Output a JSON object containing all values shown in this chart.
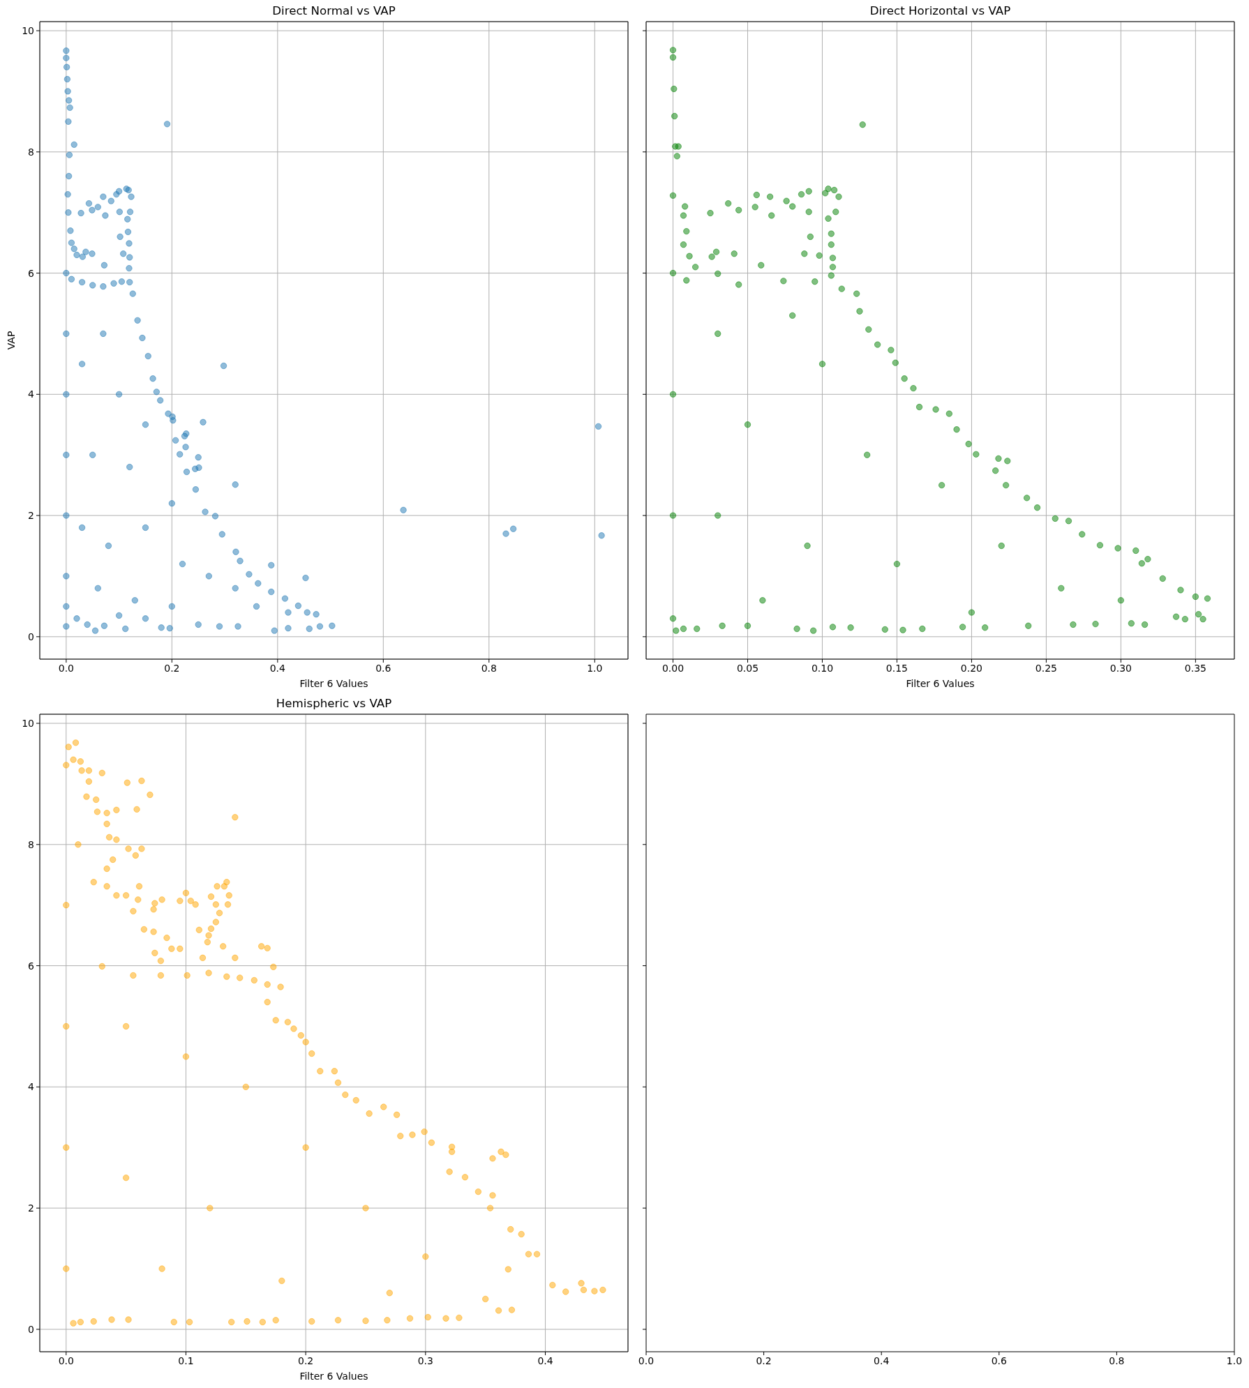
{
  "chart_data": [
    {
      "type": "scatter",
      "title": "Direct Normal vs VAP",
      "xlabel": "Filter 6 Values",
      "ylabel": "VAP",
      "color": "#1f77b4",
      "marker": "circle",
      "grid": true,
      "xlim": [
        -0.05,
        1.063
      ],
      "xticks": [
        {
          "value": 0,
          "label": "0.0"
        },
        0.2,
        0.4,
        0.6,
        0.8,
        {
          "value": 1,
          "label": "1.0"
        }
      ],
      "ylim": [
        -0.37,
        10.15
      ],
      "yticks": [
        0,
        2,
        4,
        6,
        8,
        10
      ],
      "x": [
        0,
        0,
        0.001,
        0.002,
        0.003,
        0.005,
        0.007,
        0.004,
        0.015,
        0.006,
        0.005,
        0.003,
        0.004,
        0.008,
        0.01,
        0.015,
        0.02,
        0,
        0,
        0,
        0,
        0,
        0,
        0,
        0,
        0.028,
        0.043,
        0.049,
        0.06,
        0.07,
        0.074,
        0.085,
        0.095,
        0.1,
        0.101,
        0.114,
        0.118,
        0.123,
        0.121,
        0.116,
        0.117,
        0.119,
        0.12,
        0.119,
        0.102,
        0.108,
        0.031,
        0.037,
        0.049,
        0.072,
        0.01,
        0.03,
        0.05,
        0.07,
        0.09,
        0.105,
        0.12,
        0.126,
        0.135,
        0.144,
        0.155,
        0.164,
        0.171,
        0.178,
        0.193,
        0.202,
        0.207,
        0.215,
        0.228,
        0.245,
        0.263,
        0.282,
        0.295,
        0.321,
        0.329,
        0.346,
        0.363,
        0.388,
        0.414,
        0.439,
        0.456,
        0.473,
        0.503,
        0.191,
        0.298,
        0.201,
        0.259,
        0.227,
        0.224,
        0.226,
        0.25,
        0.251,
        0.244,
        0.32,
        0.388,
        0.453,
        0.638,
        0.832,
        0.846,
        1.007,
        1.013,
        0.055,
        0.112,
        0.04,
        0.072,
        0.18,
        0.196,
        0.25,
        0.29,
        0.325,
        0.394,
        0.42,
        0.46,
        0.48,
        0.02,
        0.1,
        0.15,
        0.03,
        0.07,
        0.1,
        0.05,
        0.12,
        0.15,
        0.03,
        0.08,
        0.15,
        0.2,
        0.22,
        0.27,
        0.32,
        0.06,
        0.13,
        0.2,
        0.36,
        0.42
      ],
      "values": [
        9.67,
        9.55,
        9.4,
        9.2,
        9.0,
        8.85,
        8.73,
        8.5,
        8.12,
        7.95,
        7.6,
        7.3,
        7.0,
        6.7,
        6.5,
        6.4,
        6.3,
        6.0,
        5.0,
        4.0,
        3.0,
        2.0,
        1.0,
        0.5,
        0.17,
        6.99,
        7.15,
        7.04,
        7.09,
        7.26,
        6.95,
        7.19,
        7.3,
        7.35,
        7.01,
        7.39,
        7.37,
        7.26,
        7.01,
        6.89,
        6.68,
        6.49,
        6.26,
        6.08,
        6.6,
        6.32,
        6.27,
        6.35,
        6.32,
        6.13,
        5.9,
        5.85,
        5.8,
        5.78,
        5.83,
        5.86,
        5.85,
        5.66,
        5.22,
        4.93,
        4.63,
        4.26,
        4.04,
        3.9,
        3.68,
        3.57,
        3.24,
        3.01,
        2.72,
        2.43,
        2.06,
        1.99,
        1.69,
        1.4,
        1.25,
        1.03,
        0.88,
        0.74,
        0.63,
        0.51,
        0.4,
        0.37,
        0.18,
        8.46,
        4.47,
        3.63,
        3.54,
        3.35,
        3.31,
        3.13,
        2.96,
        2.79,
        2.77,
        2.51,
        1.18,
        0.97,
        2.09,
        1.7,
        1.78,
        3.47,
        1.67,
        0.1,
        0.13,
        0.2,
        0.18,
        0.15,
        0.14,
        0.2,
        0.17,
        0.17,
        0.1,
        0.14,
        0.13,
        0.17,
        0.3,
        0.35,
        0.3,
        4.5,
        5.0,
        4.0,
        3.0,
        2.8,
        3.5,
        1.8,
        1.5,
        1.8,
        2.2,
        1.2,
        1.0,
        0.8,
        0.8,
        0.6,
        0.5,
        0.5,
        0.4
      ]
    },
    {
      "type": "scatter",
      "title": "Direct Horizontal vs VAP",
      "xlabel": "Filter 6 Values",
      "color": "#008000",
      "marker": "circle",
      "grid": true,
      "tick_labels": "x",
      "xlim": [
        -0.018,
        0.376
      ],
      "xticks": [
        {
          "value": 0,
          "label": "0.00"
        },
        0.05,
        {
          "value": 0.1,
          "label": "0.10"
        },
        0.15,
        {
          "value": 0.2,
          "label": "0.20"
        },
        0.25,
        {
          "value": 0.3,
          "label": "0.30"
        },
        0.35
      ],
      "ylim": [
        -0.37,
        10.15
      ],
      "yticks": [
        0,
        2,
        4,
        6,
        8,
        10
      ],
      "x": [
        0,
        0,
        0.0006,
        0.001,
        0.0015,
        0.0036,
        0.0027,
        0,
        0,
        0,
        0,
        0,
        0.127,
        0.008,
        0.025,
        0.037,
        0.044,
        0.056,
        0.055,
        0.065,
        0.066,
        0.076,
        0.08,
        0.086,
        0.091,
        0.091,
        0.102,
        0.104,
        0.108,
        0.111,
        0.109,
        0.104,
        0.106,
        0.106,
        0.107,
        0.107,
        0.106,
        0.092,
        0.088,
        0.098,
        0.041,
        0.029,
        0.026,
        0.059,
        0.03,
        0.007,
        0.009,
        0.007,
        0.011,
        0.015,
        0.009,
        0.044,
        0.074,
        0.095,
        0.113,
        0.123,
        0.125,
        0.131,
        0.137,
        0.146,
        0.149,
        0.155,
        0.161,
        0.165,
        0.176,
        0.185,
        0.19,
        0.198,
        0.203,
        0.218,
        0.224,
        0.216,
        0.223,
        0.237,
        0.244,
        0.256,
        0.265,
        0.274,
        0.286,
        0.298,
        0.31,
        0.318,
        0.314,
        0.328,
        0.34,
        0.35,
        0.358,
        0.355,
        0.307,
        0.316,
        0.337,
        0.343,
        0.352,
        0.002,
        0.007,
        0.016,
        0.033,
        0.05,
        0.083,
        0.094,
        0.107,
        0.119,
        0.142,
        0.154,
        0.167,
        0.194,
        0.209,
        0.238,
        0.268,
        0.283,
        0.03,
        0.08,
        0.05,
        0.1,
        0.13,
        0.18,
        0.03,
        0.09,
        0.15,
        0.22,
        0.26,
        0.3,
        0.06,
        0.2
      ],
      "values": [
        9.68,
        9.56,
        9.04,
        8.59,
        8.09,
        8.09,
        7.93,
        7.28,
        6.0,
        4.0,
        2.0,
        0.3,
        8.45,
        7.1,
        6.99,
        7.15,
        7.04,
        7.29,
        7.09,
        7.26,
        6.95,
        7.19,
        7.1,
        7.3,
        7.35,
        7.01,
        7.32,
        7.39,
        7.37,
        7.26,
        7.01,
        6.9,
        6.65,
        6.47,
        6.25,
        6.1,
        5.96,
        6.6,
        6.32,
        6.29,
        6.32,
        6.35,
        6.27,
        6.13,
        5.99,
        6.95,
        6.69,
        6.47,
        6.28,
        6.1,
        5.88,
        5.81,
        5.87,
        5.86,
        5.74,
        5.66,
        5.37,
        5.07,
        4.82,
        4.73,
        4.52,
        4.26,
        4.1,
        3.79,
        3.75,
        3.68,
        3.42,
        3.18,
        3.01,
        2.94,
        2.9,
        2.74,
        2.5,
        2.29,
        2.13,
        1.95,
        1.91,
        1.69,
        1.51,
        1.46,
        1.42,
        1.28,
        1.21,
        0.96,
        0.77,
        0.66,
        0.63,
        0.29,
        0.22,
        0.2,
        0.33,
        0.29,
        0.37,
        0.1,
        0.13,
        0.13,
        0.18,
        0.18,
        0.13,
        0.1,
        0.16,
        0.15,
        0.12,
        0.11,
        0.13,
        0.16,
        0.15,
        0.18,
        0.2,
        0.21,
        5.0,
        5.3,
        3.5,
        4.5,
        3.0,
        2.5,
        2.0,
        1.5,
        1.2,
        1.5,
        0.8,
        0.6,
        0.6,
        0.4
      ]
    },
    {
      "type": "scatter",
      "title": "Hemispheric vs VAP",
      "xlabel": "Filter 6 Values",
      "color": "#ffa500",
      "marker": "circle",
      "grid": true,
      "xlim": [
        -0.022,
        0.469
      ],
      "xticks": [
        {
          "value": 0,
          "label": "0.0"
        },
        0.1,
        0.2,
        0.3,
        0.4
      ],
      "ylim": [
        -0.37,
        10.15
      ],
      "yticks": [
        0,
        2,
        4,
        6,
        8,
        10
      ],
      "x": [
        0.008,
        0.002,
        0,
        0.006,
        0.012,
        0.013,
        0.019,
        0.03,
        0.019,
        0.051,
        0.063,
        0.07,
        0.059,
        0.042,
        0.034,
        0.026,
        0.025,
        0.017,
        0.141,
        0.034,
        0.036,
        0.042,
        0.052,
        0.063,
        0.058,
        0.039,
        0.034,
        0.034,
        0.023,
        0.042,
        0.05,
        0.06,
        0.061,
        0.056,
        0.065,
        0.073,
        0.073,
        0.074,
        0.08,
        0.084,
        0.088,
        0.074,
        0.079,
        0.095,
        0.095,
        0.1,
        0.104,
        0.108,
        0.111,
        0.114,
        0.118,
        0.119,
        0.121,
        0.125,
        0.128,
        0.132,
        0.134,
        0.136,
        0.135,
        0.121,
        0.126,
        0.125,
        0.131,
        0.141,
        0.163,
        0.168,
        0.173,
        0.03,
        0.056,
        0.079,
        0.101,
        0.119,
        0.134,
        0.145,
        0.157,
        0.168,
        0.179,
        0.168,
        0.175,
        0.185,
        0.19,
        0.196,
        0.2,
        0.205,
        0.212,
        0.224,
        0.227,
        0.233,
        0.242,
        0.253,
        0.265,
        0.276,
        0.279,
        0.289,
        0.299,
        0.305,
        0.322,
        0.322,
        0.363,
        0.356,
        0.367,
        0.32,
        0.333,
        0.344,
        0.356,
        0.354,
        0.371,
        0.38,
        0.386,
        0.393,
        0.369,
        0.406,
        0.417,
        0.43,
        0.432,
        0.448,
        0.441,
        0.372,
        0.361,
        0.328,
        0.317,
        0.302,
        0.006,
        0.012,
        0.023,
        0.038,
        0.052,
        0.09,
        0.103,
        0.138,
        0.151,
        0.164,
        0.175,
        0.205,
        0.227,
        0.25,
        0.268,
        0.287,
        0,
        0,
        0,
        0,
        0.01,
        0.05,
        0.1,
        0.15,
        0.05,
        0.12,
        0.2,
        0.25,
        0.3,
        0.08,
        0.18,
        0.27,
        0.35
      ],
      "values": [
        9.68,
        9.61,
        9.31,
        9.4,
        9.37,
        9.22,
        9.22,
        9.18,
        9.04,
        9.02,
        9.05,
        8.82,
        8.58,
        8.57,
        8.52,
        8.54,
        8.74,
        8.79,
        8.45,
        8.34,
        8.12,
        8.08,
        7.93,
        7.93,
        7.82,
        7.75,
        7.6,
        7.31,
        7.38,
        7.16,
        7.16,
        7.09,
        7.31,
        6.9,
        6.6,
        6.56,
        6.93,
        7.03,
        7.09,
        6.46,
        6.28,
        6.21,
        6.08,
        6.28,
        7.07,
        7.2,
        7.07,
        7.01,
        6.59,
        6.13,
        6.39,
        6.5,
        6.61,
        6.72,
        6.87,
        7.31,
        7.38,
        7.16,
        7.01,
        7.14,
        7.31,
        7.01,
        6.32,
        6.13,
        6.32,
        6.29,
        5.98,
        5.99,
        5.84,
        5.84,
        5.84,
        5.88,
        5.82,
        5.8,
        5.76,
        5.69,
        5.65,
        5.4,
        5.1,
        5.07,
        4.96,
        4.85,
        4.74,
        4.55,
        4.26,
        4.26,
        4.07,
        3.87,
        3.78,
        3.56,
        3.67,
        3.54,
        3.19,
        3.21,
        3.26,
        3.08,
        3.01,
        2.93,
        2.93,
        2.82,
        2.88,
        2.6,
        2.51,
        2.27,
        2.21,
        2.0,
        1.65,
        1.57,
        1.24,
        1.24,
        0.99,
        0.73,
        0.62,
        0.76,
        0.65,
        0.65,
        0.63,
        0.32,
        0.31,
        0.19,
        0.18,
        0.2,
        0.1,
        0.12,
        0.13,
        0.16,
        0.16,
        0.12,
        0.12,
        0.12,
        0.13,
        0.12,
        0.15,
        0.13,
        0.15,
        0.14,
        0.15,
        0.18,
        7.0,
        5.0,
        3.0,
        1.0,
        8.0,
        5.0,
        4.5,
        4.0,
        2.5,
        2.0,
        3.0,
        2.0,
        1.2,
        1.0,
        0.8,
        0.6,
        0.5
      ]
    },
    {
      "type": "scatter",
      "tick_labels": "x",
      "xlim": [
        0,
        1
      ],
      "xticks": [
        {
          "value": 0,
          "label": "0.0"
        },
        0.2,
        0.4,
        0.6,
        0.8,
        {
          "value": 1,
          "label": "1.0"
        }
      ],
      "ylim": [
        -0.37,
        10.15
      ],
      "yticks": [
        0,
        2,
        4,
        6,
        8,
        10
      ]
    }
  ]
}
